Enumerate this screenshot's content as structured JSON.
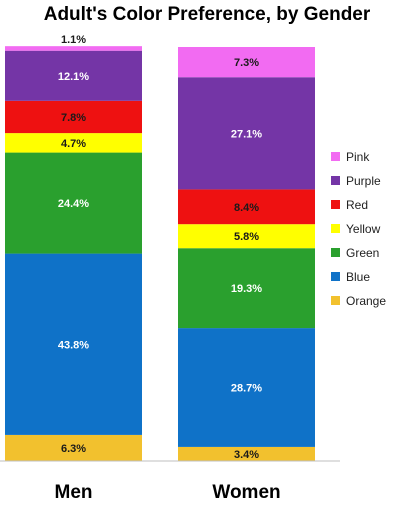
{
  "chart_data": {
    "type": "bar",
    "stacked": true,
    "title": "Adult's Color Preference, by Gender",
    "categories": [
      "Men",
      "Women"
    ],
    "ylim": [
      0,
      100
    ],
    "grid": false,
    "legend_position": "right",
    "series": [
      {
        "name": "Orange",
        "color": "#F2C12E",
        "values": [
          6.3,
          3.4
        ],
        "labels": [
          "6.3%",
          "3.4%"
        ]
      },
      {
        "name": "Blue",
        "color": "#0F72C8",
        "values": [
          43.8,
          28.7
        ],
        "labels": [
          "43.8%",
          "28.7%"
        ]
      },
      {
        "name": "Green",
        "color": "#2AA02E",
        "values": [
          24.4,
          19.3
        ],
        "labels": [
          "24.4%",
          "19.3%"
        ]
      },
      {
        "name": "Yellow",
        "color": "#FFFF00",
        "values": [
          4.7,
          5.8
        ],
        "labels": [
          "4.7%",
          "5.8%"
        ]
      },
      {
        "name": "Red",
        "color": "#EE1111",
        "values": [
          7.8,
          8.4
        ],
        "labels": [
          "7.8%",
          "8.4%"
        ]
      },
      {
        "name": "Purple",
        "color": "#7435A6",
        "values": [
          12.1,
          27.1
        ],
        "labels": [
          "12.1%",
          "27.1%"
        ]
      },
      {
        "name": "Pink",
        "color": "#F26BF2",
        "values": [
          1.1,
          7.3
        ],
        "labels": [
          "1.1%",
          "7.3%"
        ]
      }
    ],
    "legend_order": [
      "Pink",
      "Purple",
      "Red",
      "Yellow",
      "Green",
      "Blue",
      "Orange"
    ]
  }
}
